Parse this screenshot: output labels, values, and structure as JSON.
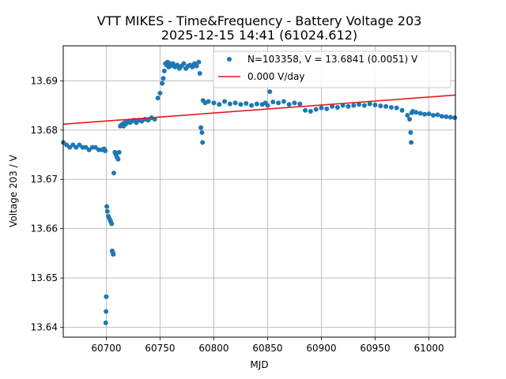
{
  "chart_data": {
    "type": "scatter",
    "title": "VTT MIKES - Time&Frequency - Battery Voltage 203",
    "subtitle": "2025-12-15 14:41 (61024.612)",
    "xlabel": "MJD",
    "ylabel": "Voltage 203 / V",
    "xlim": [
      60660,
      61024.6
    ],
    "ylim": [
      13.638,
      13.6971
    ],
    "x_ticks": [
      {
        "value": 60700,
        "label": "60700"
      },
      {
        "value": 60750,
        "label": "60750"
      },
      {
        "value": 60800,
        "label": "60800"
      },
      {
        "value": 60850,
        "label": "60850"
      },
      {
        "value": 60900,
        "label": "60900"
      },
      {
        "value": 60950,
        "label": "60950"
      },
      {
        "value": 61000,
        "label": "61000"
      }
    ],
    "y_ticks": [
      {
        "value": 13.64,
        "label": "13.64"
      },
      {
        "value": 13.65,
        "label": "13.65"
      },
      {
        "value": 13.66,
        "label": "13.66"
      },
      {
        "value": 13.67,
        "label": "13.67"
      },
      {
        "value": 13.68,
        "label": "13.68"
      },
      {
        "value": 13.69,
        "label": "13.69"
      }
    ],
    "grid": true,
    "legend_position": "upper-right",
    "colors": {
      "points": "#1f77b4",
      "fit": "#e41a1c"
    },
    "series": [
      {
        "name": "N=103358, V = 13.6841 (0.0051) V",
        "kind": "points",
        "x": [
          60660,
          60663,
          60666,
          60669,
          60672,
          60675,
          60678,
          60681,
          60684,
          60687,
          60690,
          60693,
          60696,
          60698,
          60699,
          60699.5,
          60699.8,
          60700,
          60700.5,
          60701,
          60702,
          60703,
          60704,
          60705,
          60705.5,
          60706,
          60706.5,
          60707,
          60708,
          60709,
          60710,
          60711,
          60712,
          60713,
          60714,
          60715,
          60716,
          60717,
          60718,
          60720,
          60722,
          60724,
          60726,
          60728,
          60730,
          60733,
          60736,
          60739,
          60742,
          60745,
          60748,
          60750,
          60752,
          60753,
          60754,
          60755,
          60756,
          60757,
          60758,
          60759,
          60760,
          60762,
          60764,
          60766,
          60768,
          60770,
          60772,
          60774,
          60776,
          60778,
          60780,
          60782,
          60784,
          60786,
          60787,
          60788,
          60789,
          60789.5,
          60790,
          60792,
          60795,
          60800,
          60805,
          60810,
          60815,
          60820,
          60825,
          60830,
          60835,
          60840,
          60845,
          60848,
          60850,
          60852,
          60855,
          60860,
          60865,
          60870,
          60875,
          60880,
          60885,
          60890,
          60895,
          60900,
          60905,
          60910,
          60915,
          60920,
          60925,
          60930,
          60935,
          60940,
          60945,
          60950,
          60955,
          60960,
          60965,
          60970,
          60975,
          60980,
          60982,
          60983,
          60983.5,
          60984,
          60985,
          60988,
          60992,
          60996,
          61000,
          61004,
          61008,
          61012,
          61016,
          61020,
          61024
        ],
        "y": [
          13.6775,
          13.677,
          13.6765,
          13.677,
          13.6765,
          13.677,
          13.6765,
          13.6765,
          13.676,
          13.6765,
          13.6765,
          13.676,
          13.676,
          13.6762,
          13.6758,
          13.6409,
          13.6432,
          13.6462,
          13.6645,
          13.6635,
          13.6625,
          13.662,
          13.6615,
          13.661,
          13.6555,
          13.6552,
          13.6548,
          13.6713,
          13.6755,
          13.675,
          13.6745,
          13.6741,
          13.6755,
          13.6808,
          13.681,
          13.6812,
          13.6808,
          13.6815,
          13.6812,
          13.6818,
          13.6815,
          13.6818,
          13.682,
          13.6815,
          13.682,
          13.6818,
          13.6822,
          13.682,
          13.6825,
          13.6822,
          13.6865,
          13.6875,
          13.6895,
          13.6905,
          13.692,
          13.6935,
          13.6932,
          13.6938,
          13.6928,
          13.6935,
          13.693,
          13.6935,
          13.6928,
          13.6932,
          13.6925,
          13.693,
          13.6935,
          13.6925,
          13.693,
          13.6932,
          13.6928,
          13.6935,
          13.693,
          13.6938,
          13.6915,
          13.6805,
          13.6795,
          13.6775,
          13.686,
          13.6855,
          13.6858,
          13.6855,
          13.6852,
          13.6858,
          13.6853,
          13.6855,
          13.6852,
          13.6854,
          13.685,
          13.6853,
          13.6852,
          13.6855,
          13.685,
          13.6878,
          13.6857,
          13.6855,
          13.6858,
          13.6852,
          13.6855,
          13.6853,
          13.684,
          13.6838,
          13.6842,
          13.6845,
          13.6843,
          13.6848,
          13.6846,
          13.685,
          13.6848,
          13.685,
          13.6852,
          13.685,
          13.6853,
          13.6851,
          13.6849,
          13.6848,
          13.6846,
          13.6845,
          13.684,
          13.683,
          13.6822,
          13.6795,
          13.6775,
          13.6835,
          13.6838,
          13.6836,
          13.6834,
          13.6832,
          13.6833,
          13.683,
          13.6831,
          13.6828,
          13.6827,
          13.6826,
          13.6825
        ]
      },
      {
        "name": "0.000 V/day",
        "kind": "line",
        "x": [
          60660,
          61024.6
        ],
        "y": [
          13.6812,
          13.6871
        ]
      }
    ]
  }
}
